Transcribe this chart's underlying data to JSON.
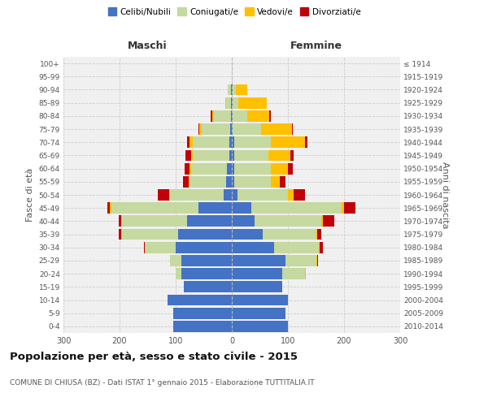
{
  "age_groups": [
    "0-4",
    "5-9",
    "10-14",
    "15-19",
    "20-24",
    "25-29",
    "30-34",
    "35-39",
    "40-44",
    "45-49",
    "50-54",
    "55-59",
    "60-64",
    "65-69",
    "70-74",
    "75-79",
    "80-84",
    "85-89",
    "90-94",
    "95-99",
    "100+"
  ],
  "birth_years": [
    "2010-2014",
    "2005-2009",
    "2000-2004",
    "1995-1999",
    "1990-1994",
    "1985-1989",
    "1980-1984",
    "1975-1979",
    "1970-1974",
    "1965-1969",
    "1960-1964",
    "1955-1959",
    "1950-1954",
    "1945-1949",
    "1940-1944",
    "1935-1939",
    "1930-1934",
    "1925-1929",
    "1920-1924",
    "1915-1919",
    "≤ 1914"
  ],
  "male": {
    "celibi": [
      105,
      105,
      115,
      85,
      90,
      90,
      100,
      95,
      80,
      60,
      15,
      10,
      8,
      5,
      5,
      3,
      2,
      2,
      2,
      0,
      0
    ],
    "coniugati": [
      0,
      0,
      0,
      0,
      10,
      20,
      55,
      100,
      115,
      155,
      95,
      65,
      65,
      65,
      65,
      50,
      30,
      8,
      5,
      0,
      0
    ],
    "vedovi": [
      0,
      0,
      0,
      0,
      0,
      0,
      0,
      2,
      2,
      2,
      2,
      2,
      3,
      3,
      5,
      5,
      3,
      2,
      0,
      0,
      0
    ],
    "divorziati": [
      0,
      0,
      0,
      0,
      0,
      0,
      2,
      5,
      5,
      5,
      20,
      10,
      8,
      10,
      5,
      2,
      2,
      0,
      0,
      0,
      0
    ]
  },
  "female": {
    "nubili": [
      100,
      95,
      100,
      90,
      90,
      95,
      75,
      55,
      40,
      35,
      10,
      5,
      5,
      5,
      5,
      2,
      2,
      2,
      2,
      0,
      0
    ],
    "coniugate": [
      0,
      0,
      0,
      0,
      40,
      55,
      80,
      95,
      120,
      160,
      90,
      65,
      65,
      60,
      65,
      50,
      25,
      10,
      5,
      0,
      0
    ],
    "vedove": [
      0,
      0,
      0,
      0,
      2,
      2,
      2,
      2,
      2,
      5,
      10,
      15,
      30,
      40,
      60,
      55,
      40,
      50,
      20,
      0,
      0
    ],
    "divorziate": [
      0,
      0,
      0,
      0,
      0,
      2,
      5,
      8,
      20,
      20,
      20,
      10,
      8,
      5,
      5,
      2,
      2,
      0,
      0,
      0,
      0
    ]
  },
  "colors": {
    "celibi": "#4472c4",
    "coniugati": "#c5d9a0",
    "vedovi": "#ffc000",
    "divorziati": "#c0000b"
  },
  "xlim": 300,
  "title": "Popolazione per età, sesso e stato civile - 2015",
  "subtitle": "COMUNE DI CHIUSA (BZ) - Dati ISTAT 1° gennaio 2015 - Elaborazione TUTTITALIA.IT",
  "ylabel_left": "Fasce di età",
  "ylabel_right": "Anni di nascita",
  "xlabel_left": "Maschi",
  "xlabel_right": "Femmine",
  "bg_color": "#f0f0f0",
  "grid_color": "#cccccc"
}
